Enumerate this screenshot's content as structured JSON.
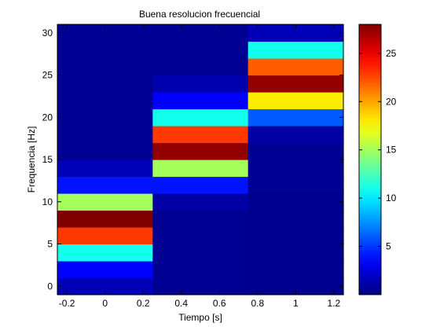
{
  "chart_data": {
    "type": "heatmap",
    "title": "Buena resolucion frecuencial",
    "xlabel": "Tiempo [s]",
    "ylabel": "Frequencia [Hz]",
    "xlim": [
      -0.25,
      1.25
    ],
    "ylim": [
      -1,
      31
    ],
    "x_ticks": [
      -0.2,
      0,
      0.2,
      0.4,
      0.6,
      0.8,
      1,
      1.2
    ],
    "x_tick_labels": [
      "-0.2",
      "0",
      "0.2",
      "0.4",
      "0.6",
      "0.8",
      "1",
      "1.2"
    ],
    "y_ticks": [
      0,
      5,
      10,
      15,
      20,
      25,
      30
    ],
    "y_tick_labels": [
      "0",
      "5",
      "10",
      "15",
      "20",
      "25",
      "30"
    ],
    "colormap": "jet",
    "clim": [
      0,
      28
    ],
    "colorbar_ticks": [
      5,
      10,
      15,
      20,
      25
    ],
    "colorbar_tick_labels": [
      "5",
      "10",
      "15",
      "20",
      "25"
    ],
    "time_bins": [
      0,
      0.5,
      1
    ],
    "time_bin_width": 0.5,
    "freq_bins": [
      0,
      2,
      4,
      6,
      8,
      10,
      12,
      14,
      16,
      18,
      20,
      22,
      24,
      26,
      28,
      30
    ],
    "freq_bin_height": 2,
    "z": [
      [
        1.5,
        0.5,
        0.4
      ],
      [
        3.5,
        0.5,
        0.4
      ],
      [
        11,
        0.5,
        0.4
      ],
      [
        23,
        0.5,
        0.4
      ],
      [
        28,
        0.5,
        0.4
      ],
      [
        15,
        1,
        0.4
      ],
      [
        4,
        4,
        0.5
      ],
      [
        1.5,
        15,
        0.5
      ],
      [
        0.5,
        27.5,
        0.5
      ],
      [
        0.5,
        23,
        1
      ],
      [
        0.5,
        11,
        6
      ],
      [
        0.5,
        3.5,
        18
      ],
      [
        0.5,
        1.3,
        27.5
      ],
      [
        0.5,
        0.5,
        22
      ],
      [
        0.5,
        0.5,
        11
      ],
      [
        0.5,
        0.5,
        1.5
      ]
    ]
  }
}
